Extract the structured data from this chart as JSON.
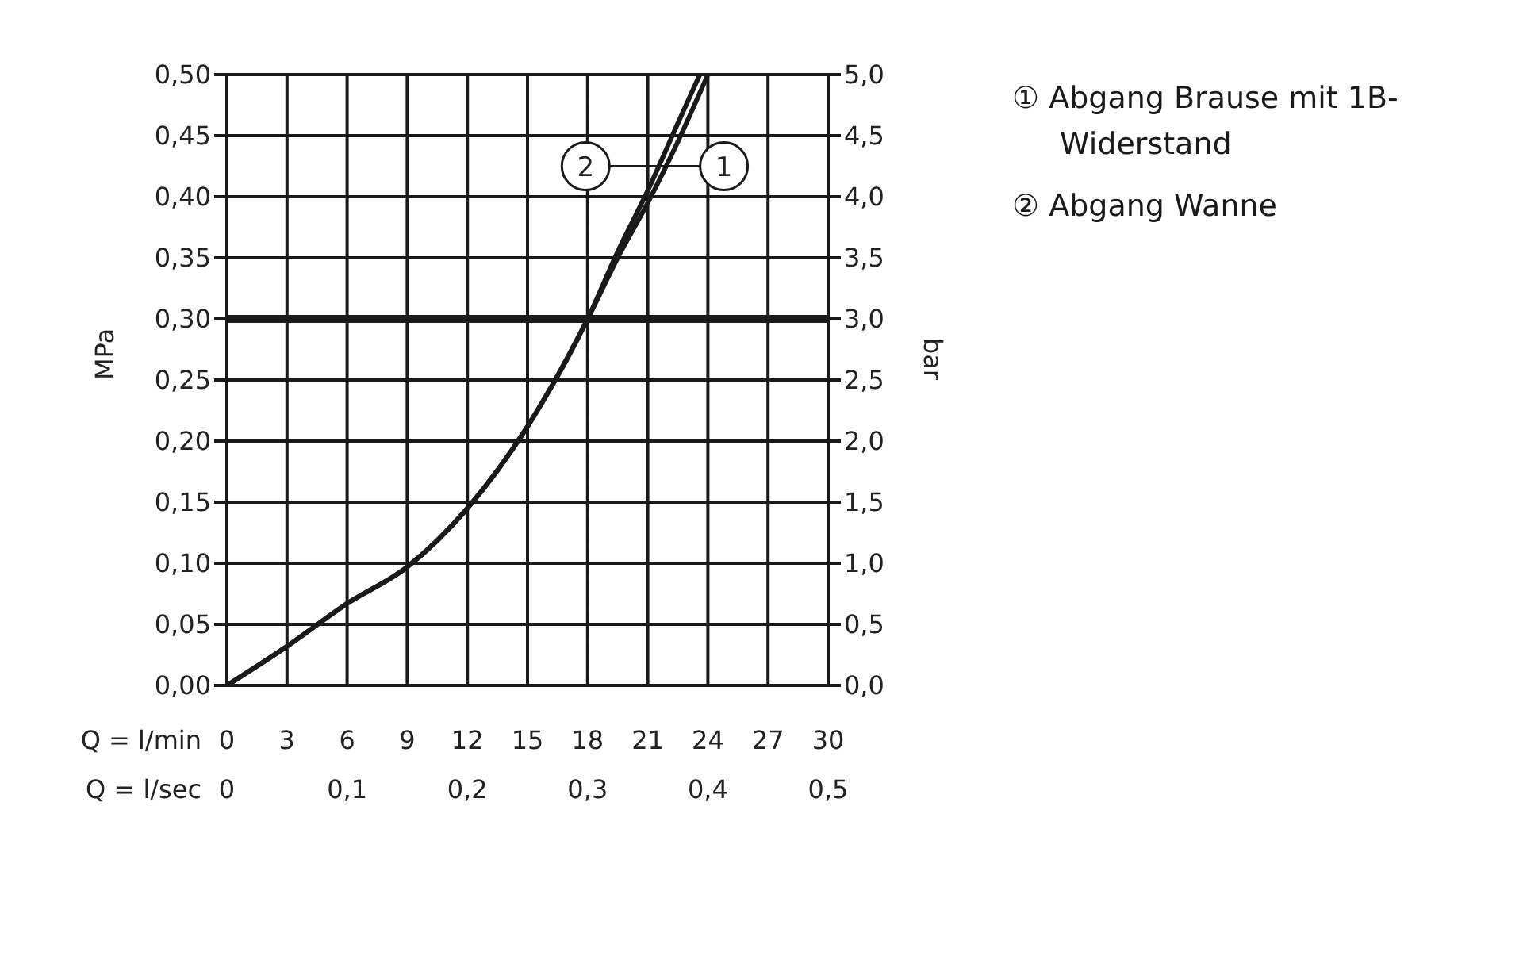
{
  "chart_data": {
    "type": "line",
    "xlabel": "Q = l/min",
    "x2label": "Q = l/sec",
    "ylabel": "MPa",
    "y2label": "bar",
    "xlim": [
      0,
      30
    ],
    "xticks": [
      0,
      3,
      6,
      9,
      12,
      15,
      18,
      21,
      24,
      27,
      30
    ],
    "x2lim": [
      0,
      0.5
    ],
    "x2ticks": [
      0,
      {
        "value": 0.1,
        "label": "0,1"
      },
      {
        "value": 0.2,
        "label": "0,2"
      },
      {
        "value": 0.3,
        "label": "0,3"
      },
      {
        "value": 0.4,
        "label": "0,4"
      },
      {
        "value": 0.5,
        "label": "0,5"
      }
    ],
    "ylim": [
      0,
      0.5
    ],
    "yticks": [
      {
        "value": 0,
        "label": "0,00"
      },
      {
        "value": 0.05,
        "label": "0,05"
      },
      {
        "value": 0.1,
        "label": "0,10"
      },
      {
        "value": 0.15,
        "label": "0,15"
      },
      {
        "value": 0.2,
        "label": "0,20"
      },
      {
        "value": 0.25,
        "label": "0,25"
      },
      {
        "value": 0.3,
        "label": "0,30"
      },
      {
        "value": 0.35,
        "label": "0,35"
      },
      {
        "value": 0.4,
        "label": "0,40"
      },
      {
        "value": 0.45,
        "label": "0,45"
      },
      {
        "value": 0.5,
        "label": "0,50"
      }
    ],
    "y2lim": [
      0,
      5
    ],
    "y2ticks": [
      {
        "value": 0,
        "label": "0,0"
      },
      {
        "value": 0.5,
        "label": "0,5"
      },
      {
        "value": 1,
        "label": "1,0"
      },
      {
        "value": 1.5,
        "label": "1,5"
      },
      {
        "value": 2,
        "label": "2,0"
      },
      {
        "value": 2.5,
        "label": "2,5"
      },
      {
        "value": 3,
        "label": "3,0"
      },
      {
        "value": 3.5,
        "label": "3,5"
      },
      {
        "value": 4,
        "label": "4,0"
      },
      {
        "value": 4.5,
        "label": "4,5"
      },
      {
        "value": 5,
        "label": "5,0"
      }
    ],
    "series": [
      {
        "name": "① Abgang Brause mit 1B-Widerstand",
        "color": "#1a1a1a",
        "x": [
          0,
          3,
          6,
          9,
          12,
          15,
          18,
          19.5,
          21,
          22.5,
          24
        ],
        "values": [
          0,
          0.032,
          0.067,
          0.097,
          0.145,
          0.212,
          0.3,
          0.35,
          0.395,
          0.445,
          0.5
        ]
      },
      {
        "name": "② Abgang Wanne",
        "color": "#1a1a1a",
        "x": [
          0,
          3,
          6,
          9,
          12,
          15,
          18,
          19.5,
          21,
          22.5,
          23.6
        ],
        "values": [
          0,
          0.032,
          0.067,
          0.097,
          0.145,
          0.212,
          0.3,
          0.355,
          0.405,
          0.46,
          0.5
        ]
      }
    ],
    "ref_lines": [
      {
        "axis": "y",
        "value": 0.3,
        "color": "#1a1a1a",
        "line_style": "solid"
      },
      {
        "axis": "x",
        "value": 18,
        "color": "#1a1a1a",
        "line_style": "dashed"
      }
    ],
    "annotations": [
      {
        "text": "2",
        "x": 17.9,
        "y": 0.425
      },
      {
        "text": "1",
        "x": 24.8,
        "y": 0.425
      }
    ],
    "grid": true,
    "legend": "right",
    "marker": "none",
    "line_style": "solid"
  }
}
